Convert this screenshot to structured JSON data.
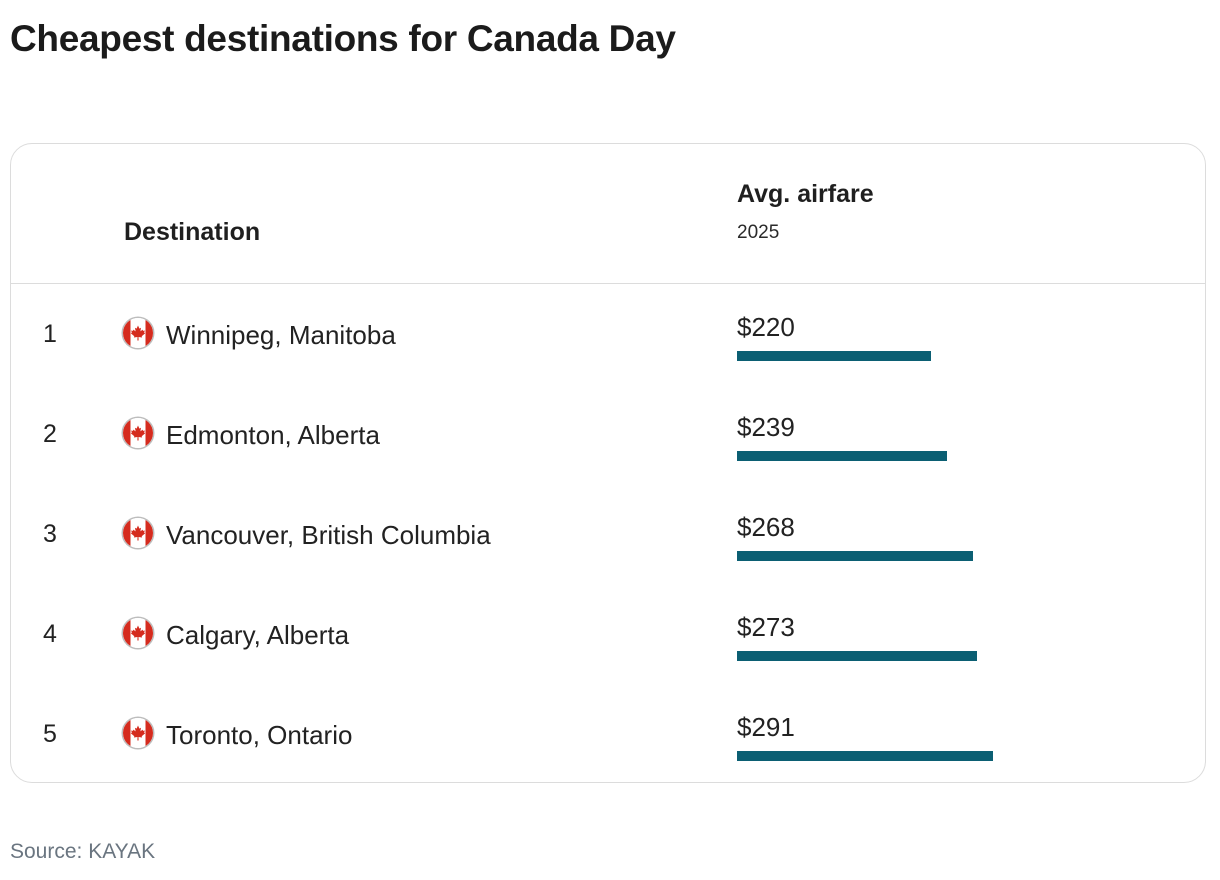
{
  "title": "Cheapest destinations for Canada Day",
  "table": {
    "col_destination": "Destination",
    "col_fare": "Avg. airfare",
    "col_fare_sub": "2025"
  },
  "colors": {
    "bar": "#0b5f73",
    "flag_red": "#d52b1e"
  },
  "source": "Source: KAYAK",
  "chart_data": {
    "type": "bar",
    "title": "Cheapest destinations for Canada Day",
    "categories": [
      "Winnipeg, Manitoba",
      "Edmonton, Alberta",
      "Vancouver, British Columbia",
      "Calgary, Alberta",
      "Toronto, Ontario"
    ],
    "ranks": [
      "1",
      "2",
      "3",
      "4",
      "5"
    ],
    "value_labels": [
      "$220",
      "$239",
      "$268",
      "$273",
      "$291"
    ],
    "values": [
      220,
      239,
      268,
      273,
      291
    ],
    "flag_icon": "canada-flag-icon",
    "xlabel": "Avg. airfare",
    "ylabel": "Destination",
    "grid": false
  }
}
